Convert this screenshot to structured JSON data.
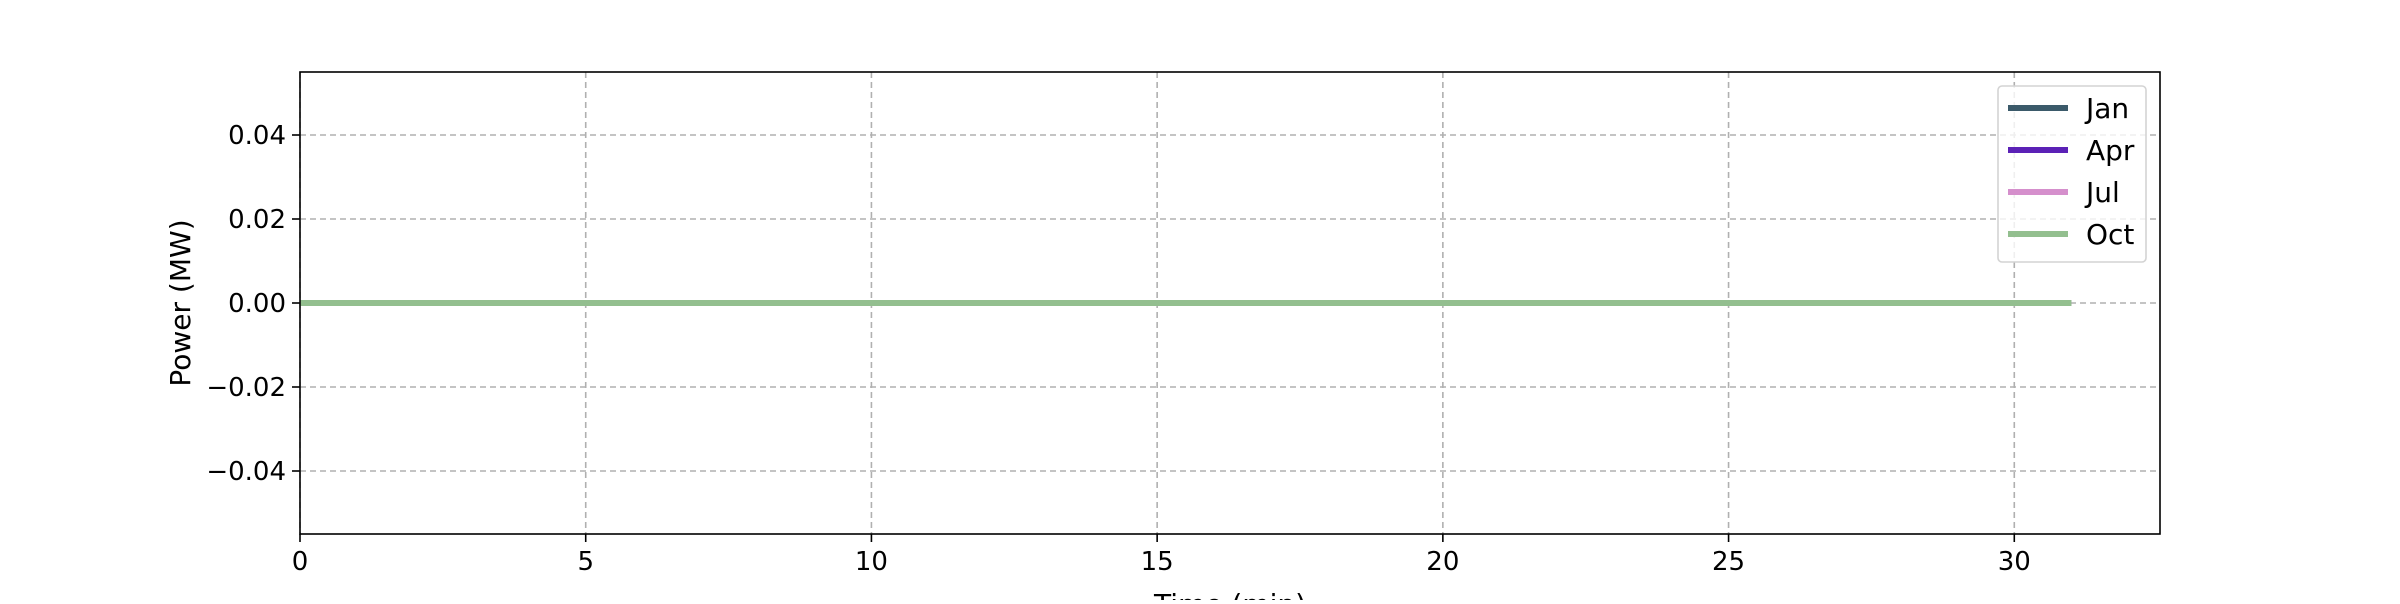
{
  "chart_data": {
    "type": "line",
    "title": "",
    "xlabel": "Time (min)",
    "ylabel": "Power (MW)",
    "xlim": [
      0,
      32.55
    ],
    "ylim": [
      -0.055,
      0.055
    ],
    "x_ticks": [
      0,
      5,
      10,
      15,
      20,
      25,
      30
    ],
    "x_tick_labels": [
      "0",
      "5",
      "10",
      "15",
      "20",
      "25",
      "30"
    ],
    "y_ticks": [
      -0.04,
      -0.02,
      0.0,
      0.02,
      0.04
    ],
    "y_tick_labels": [
      "−0.04",
      "−0.02",
      "0.00",
      "0.02",
      "0.04"
    ],
    "grid": true,
    "legend_position": "top-right",
    "x": [
      0,
      31
    ],
    "series": [
      {
        "name": "Jan",
        "color": "#3b5a6a",
        "values": [
          0,
          0
        ]
      },
      {
        "name": "Apr",
        "color": "#5b21b6",
        "values": [
          0,
          0
        ]
      },
      {
        "name": "Jul",
        "color": "#d58fcc",
        "values": [
          0,
          0
        ]
      },
      {
        "name": "Oct",
        "color": "#93bf8f",
        "values": [
          0,
          0
        ]
      }
    ]
  }
}
